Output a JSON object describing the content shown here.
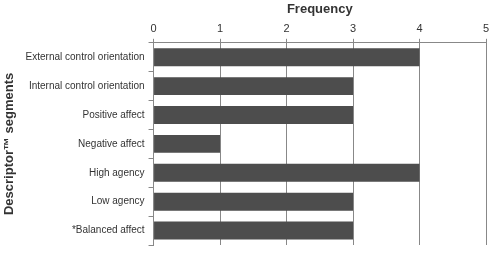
{
  "chart_data": {
    "type": "bar",
    "orientation": "horizontal",
    "x_label": "Frequency",
    "y_label": "Descriptor™ segments",
    "categories": [
      "External control orientation",
      "Internal control orientation",
      "Positive affect",
      "Negative affect",
      "High agency",
      "Low agency",
      "*Balanced affect"
    ],
    "values": [
      4,
      3,
      3,
      1,
      4,
      3,
      3
    ],
    "color": "#4d4d4d",
    "xlim": [
      0,
      5
    ],
    "xticks": [
      0,
      1,
      2,
      3,
      4,
      5
    ],
    "grid": true
  }
}
